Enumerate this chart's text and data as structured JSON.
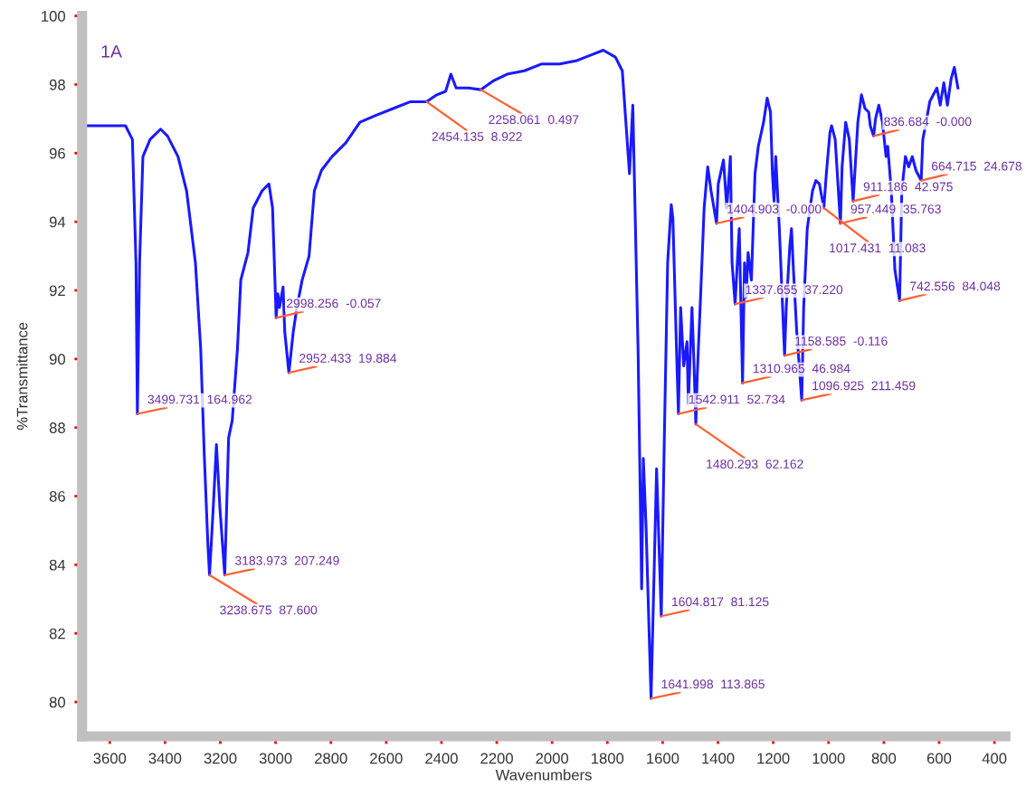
{
  "chart_data": {
    "type": "line",
    "xlabel": "Wavenumbers",
    "ylabel": "%Transmittance",
    "xlim": [
      3700,
      360
    ],
    "ylim": [
      79,
      100
    ],
    "xticks": [
      3600,
      3400,
      3200,
      3000,
      2800,
      2600,
      2400,
      2200,
      2000,
      1800,
      1600,
      1400,
      1200,
      1000,
      800,
      600,
      400
    ],
    "yticks": [
      80,
      82,
      84,
      86,
      88,
      90,
      92,
      94,
      96,
      98,
      100
    ],
    "grid": false,
    "legend": false,
    "marker": "none",
    "line_style": "solid",
    "series": [
      {
        "color": "#1a1aff",
        "x": [
          3700,
          3543,
          3518,
          3505,
          3500,
          3492,
          3480,
          3454,
          3416,
          3391,
          3353,
          3322,
          3290,
          3271,
          3258,
          3245,
          3239,
          3226,
          3214,
          3201,
          3184,
          3170,
          3157,
          3138,
          3126,
          3100,
          3081,
          3049,
          3024,
          3011,
          2998,
          2992,
          2986,
          2973,
          2967,
          2952,
          2936,
          2923,
          2904,
          2879,
          2860,
          2834,
          2796,
          2746,
          2695,
          2638,
          2575,
          2512,
          2454,
          2417,
          2385,
          2366,
          2347,
          2303,
          2258,
          2214,
          2163,
          2100,
          2037,
          1973,
          1910,
          1847,
          1815,
          1771,
          1746,
          1720,
          1708,
          1689,
          1676,
          1670,
          1660,
          1642,
          1630,
          1622,
          1605,
          1594,
          1582,
          1569,
          1563,
          1550,
          1543,
          1535,
          1524,
          1512,
          1507,
          1494,
          1488,
          1480,
          1475,
          1463,
          1450,
          1437,
          1425,
          1405,
          1399,
          1380,
          1368,
          1355,
          1349,
          1338,
          1330,
          1323,
          1311,
          1304,
          1298,
          1291,
          1279,
          1266,
          1254,
          1235,
          1222,
          1210,
          1203,
          1197,
          1191,
          1178,
          1159,
          1153,
          1140,
          1134,
          1127,
          1115,
          1097,
          1090,
          1077,
          1058,
          1046,
          1033,
          1017,
          1008,
          995,
          989,
          976,
          957,
          951,
          938,
          925,
          911,
          894,
          881,
          868,
          855,
          849,
          837,
          830,
          818,
          805,
          792,
          786,
          773,
          760,
          743,
          735,
          722,
          710,
          697,
          684,
          665,
          659,
          647,
          634,
          621,
          608,
          596,
          583,
          570,
          557,
          545,
          532
        ],
        "values": [
          96.8,
          96.8,
          96.4,
          92.8,
          88.4,
          92.8,
          95.9,
          96.4,
          96.7,
          96.5,
          95.9,
          94.9,
          92.8,
          90.3,
          87.2,
          84.6,
          83.7,
          85.6,
          87.5,
          85.6,
          83.7,
          87.7,
          88.2,
          90.3,
          92.3,
          93.1,
          94.4,
          94.9,
          95.1,
          94.4,
          91.2,
          91.9,
          91.5,
          92.1,
          90.8,
          89.6,
          90.8,
          91.5,
          92.3,
          93.0,
          94.9,
          95.5,
          95.9,
          96.3,
          96.9,
          97.1,
          97.3,
          97.5,
          97.5,
          97.7,
          97.8,
          98.3,
          97.9,
          97.9,
          97.85,
          98.1,
          98.3,
          98.4,
          98.6,
          98.6,
          98.7,
          98.9,
          99.0,
          98.8,
          98.4,
          95.4,
          97.4,
          90.3,
          83.3,
          87.1,
          85.1,
          80.1,
          84.1,
          86.8,
          82.5,
          87.7,
          92.8,
          94.5,
          94.1,
          90.3,
          88.4,
          91.5,
          89.8,
          90.5,
          88.7,
          91.5,
          90.2,
          88.1,
          89.5,
          91.8,
          94.4,
          95.6,
          94.9,
          93.95,
          95.1,
          95.8,
          94.4,
          95.9,
          92.8,
          91.6,
          92.8,
          93.8,
          89.3,
          92.8,
          91.8,
          93.1,
          92.3,
          95.4,
          96.2,
          96.9,
          97.6,
          97.2,
          95.4,
          94.6,
          95.9,
          93.8,
          90.1,
          91.5,
          93.3,
          93.8,
          92.6,
          90.8,
          88.8,
          91.5,
          93.8,
          94.9,
          95.2,
          95.1,
          94.4,
          95.4,
          96.6,
          96.8,
          96.4,
          93.95,
          95.6,
          96.9,
          96.4,
          94.6,
          96.9,
          97.7,
          97.3,
          97.2,
          96.8,
          96.5,
          97.0,
          97.4,
          96.9,
          95.9,
          96.2,
          94.9,
          92.6,
          91.7,
          94.9,
          95.9,
          95.6,
          95.9,
          95.5,
          95.2,
          96.4,
          96.9,
          97.5,
          97.7,
          97.9,
          97.4,
          98.05,
          97.4,
          98.15,
          98.5,
          97.9
        ]
      }
    ],
    "annotations": [
      "1A",
      {
        "text": "3499.731  164.962",
        "x": 3500,
        "y": 88.4
      },
      {
        "text": "3238.675  87.600",
        "x": 3239,
        "y": 83.7
      },
      {
        "text": "3183.973  207.249",
        "x": 3184,
        "y": 83.7
      },
      {
        "text": "2998.256  -0.057",
        "x": 2998,
        "y": 91.2
      },
      {
        "text": "2952.433  19.884",
        "x": 2952,
        "y": 89.6
      },
      {
        "text": "2454.135  8.922",
        "x": 2454,
        "y": 97.5
      },
      {
        "text": "2258.061  0.497",
        "x": 2258,
        "y": 97.85
      },
      {
        "text": "1641.998  113.865",
        "x": 1642,
        "y": 80.1
      },
      {
        "text": "1604.817  81.125",
        "x": 1605,
        "y": 82.5
      },
      {
        "text": "1542.911  52.734",
        "x": 1543,
        "y": 88.4
      },
      {
        "text": "1480.293  62.162",
        "x": 1480,
        "y": 88.1
      },
      {
        "text": "1404.903  -0.000",
        "x": 1405,
        "y": 93.95
      },
      {
        "text": "1337.655  37.220",
        "x": 1338,
        "y": 91.6
      },
      {
        "text": "1310.965  46.984",
        "x": 1311,
        "y": 89.3
      },
      {
        "text": "1158.585  -0.116",
        "x": 1159,
        "y": 90.1
      },
      {
        "text": "1096.925  211.459",
        "x": 1097,
        "y": 88.8
      },
      {
        "text": "1017.431  11.083",
        "x": 1017,
        "y": 94.4
      },
      {
        "text": "957.449  35.763",
        "x": 957,
        "y": 93.95
      },
      {
        "text": "911.186  42.975",
        "x": 911,
        "y": 94.6
      },
      {
        "text": "836.684  -0.000",
        "x": 837,
        "y": 96.5
      },
      {
        "text": "742.556  84.048",
        "x": 743,
        "y": 91.7
      },
      {
        "text": "664.715  24.678",
        "x": 665,
        "y": 95.2
      }
    ]
  }
}
